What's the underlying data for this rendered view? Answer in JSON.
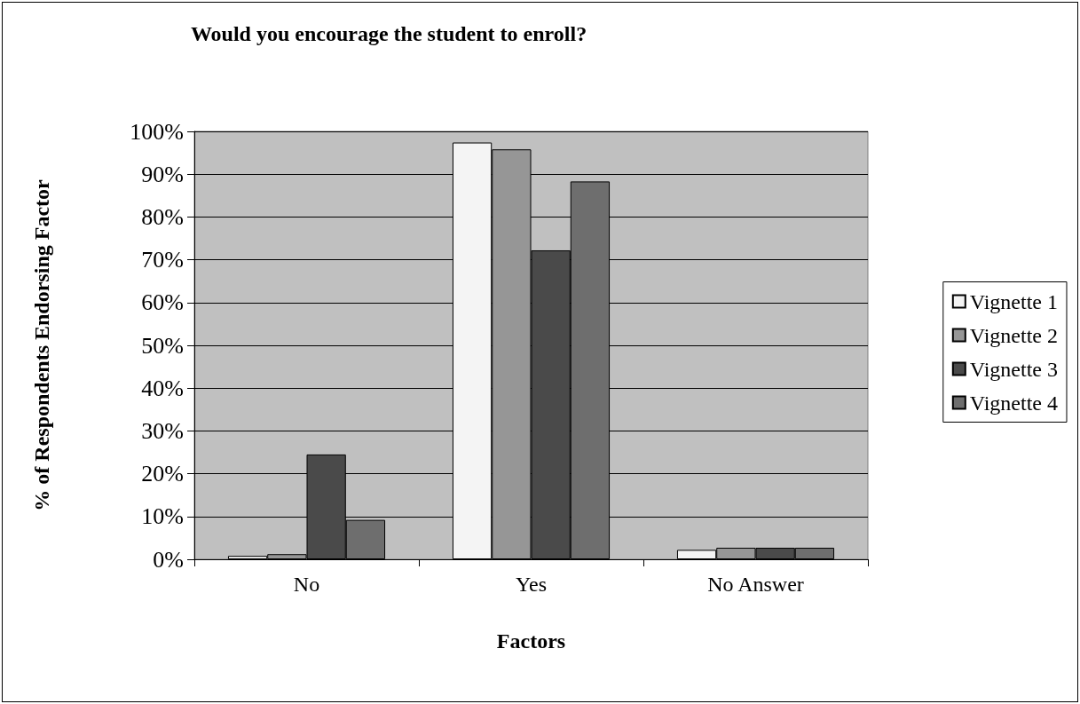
{
  "chart_data": {
    "type": "bar",
    "title": "Would you encourage the student to enroll?",
    "xlabel": "Factors",
    "ylabel": "% of Respondents Endorsing Factor",
    "categories": [
      "No",
      "Yes",
      "No Answer"
    ],
    "series": [
      {
        "name": "Vignette 1",
        "color": "#f4f4f4",
        "values": [
          0.8,
          97.4,
          2.2
        ]
      },
      {
        "name": "Vignette 2",
        "color": "#969696",
        "values": [
          1.2,
          95.8,
          2.7
        ]
      },
      {
        "name": "Vignette 3",
        "color": "#4a4a4a",
        "values": [
          24.5,
          72.2,
          2.7
        ]
      },
      {
        "name": "Vignette 4",
        "color": "#6e6e6e",
        "values": [
          9.2,
          88.3,
          2.7
        ]
      }
    ],
    "ylim": [
      0,
      100
    ],
    "yticks": [
      {
        "value": 0,
        "label": "0%"
      },
      {
        "value": 10,
        "label": "10%"
      },
      {
        "value": 20,
        "label": "20%"
      },
      {
        "value": 30,
        "label": "30%"
      },
      {
        "value": 40,
        "label": "40%"
      },
      {
        "value": 50,
        "label": "50%"
      },
      {
        "value": 60,
        "label": "60%"
      },
      {
        "value": 70,
        "label": "70%"
      },
      {
        "value": 80,
        "label": "80%"
      },
      {
        "value": 90,
        "label": "90%"
      },
      {
        "value": 100,
        "label": "100%"
      }
    ],
    "grid": "y",
    "legend": "right"
  }
}
